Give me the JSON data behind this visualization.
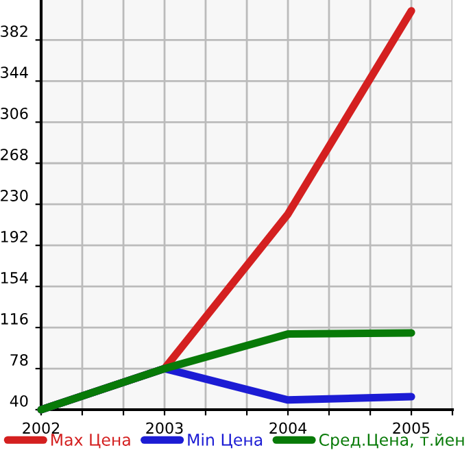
{
  "chart_data": {
    "type": "line",
    "x": [
      2002,
      2003,
      2004,
      2005
    ],
    "series": [
      {
        "name": "Max Цена",
        "color": "#d42020",
        "values": [
          40,
          78,
          221,
          409
        ]
      },
      {
        "name": "Min Цена",
        "color": "#1c1cd4",
        "values": [
          40,
          78,
          49,
          52
        ]
      },
      {
        "name": "Сред.Цена, т.йен",
        "color": "#087a08",
        "values": [
          40,
          78,
          110,
          111
        ]
      }
    ],
    "xlim": [
      2002,
      2005.333
    ],
    "xticks": [
      2002,
      {
        "value": 2002.333,
        "label": null
      },
      {
        "value": 2002.667,
        "label": null
      },
      2003,
      {
        "value": 2003.333,
        "label": null
      },
      {
        "value": 2003.667,
        "label": null
      },
      2004,
      {
        "value": 2004.333,
        "label": null
      },
      {
        "value": 2004.667,
        "label": null
      },
      2005,
      {
        "value": 2005.333,
        "label": null
      }
    ],
    "ylim": [
      40,
      419
    ],
    "yticks": [
      40,
      78,
      116,
      154,
      192,
      230,
      268,
      306,
      344,
      382
    ],
    "grid": true,
    "legend": "bottom",
    "marker": "none",
    "line_style": "solid"
  }
}
